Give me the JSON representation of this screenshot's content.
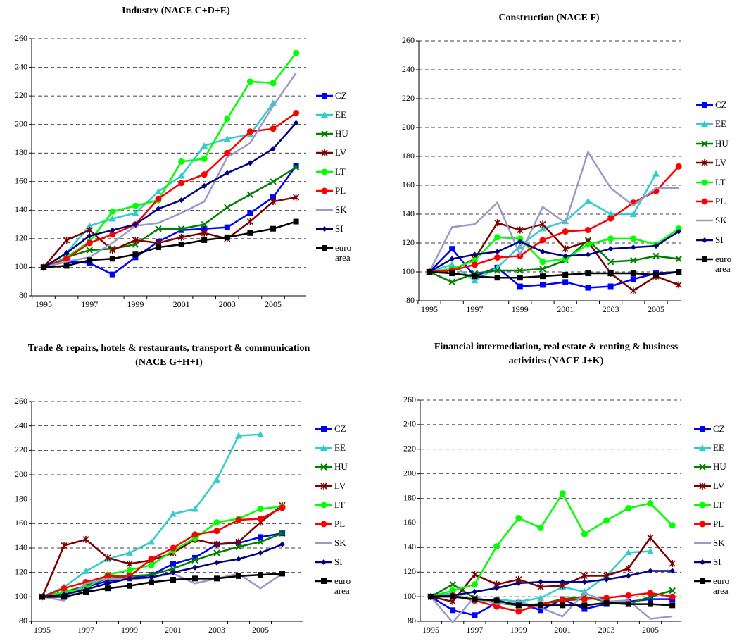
{
  "chart_data": [
    {
      "type": "line",
      "title": "Industry (NACE C+D+E)",
      "categories": [
        "1995",
        null,
        "1997",
        null,
        "1999",
        null,
        "2001",
        null,
        "2003",
        null,
        "2005",
        null
      ],
      "ylim": [
        80,
        260
      ],
      "yticks": [
        80,
        100,
        120,
        140,
        160,
        180,
        200,
        220,
        240,
        260
      ],
      "grid": true,
      "series": [
        {
          "name": "CZ",
          "color": "#0000ff",
          "marker": "square",
          "values": [
            100,
            104,
            103,
            95,
            107,
            118,
            126,
            127,
            128,
            138,
            149,
            171
          ]
        },
        {
          "name": "EE",
          "color": "#33cccc",
          "marker": "triangle",
          "values": [
            100,
            110,
            129,
            134,
            138,
            153,
            164,
            185,
            190,
            193,
            215,
            null
          ]
        },
        {
          "name": "HU",
          "color": "#008000",
          "marker": "x",
          "values": [
            100,
            107,
            112,
            113,
            116,
            127,
            127,
            130,
            142,
            151,
            160,
            170
          ]
        },
        {
          "name": "LV",
          "color": "#800000",
          "marker": "star",
          "values": [
            100,
            119,
            126,
            112,
            119,
            117,
            121,
            124,
            120,
            132,
            146,
            149
          ]
        },
        {
          "name": "LT",
          "color": "#00ff00",
          "marker": "circle",
          "values": [
            100,
            107,
            118,
            139,
            143,
            147,
            174,
            176,
            204,
            230,
            229,
            250
          ]
        },
        {
          "name": "PL",
          "color": "#ff0000",
          "marker": "circle",
          "values": [
            100,
            106,
            117,
            123,
            130,
            148,
            159,
            165,
            180,
            195,
            197,
            208
          ]
        },
        {
          "name": "SK",
          "color": "#9999cc",
          "marker": "none",
          "values": [
            100,
            104,
            107,
            117,
            129,
            131,
            138,
            146,
            177,
            187,
            213,
            236
          ]
        },
        {
          "name": "SI",
          "color": "#000080",
          "marker": "diamond",
          "values": [
            100,
            110,
            122,
            126,
            130,
            141,
            147,
            157,
            166,
            173,
            183,
            201
          ]
        },
        {
          "name": "euro area",
          "color": "#000000",
          "marker": "square",
          "values": [
            100,
            101,
            105,
            106,
            109,
            114,
            116,
            119,
            121,
            124,
            127,
            132
          ]
        }
      ]
    },
    {
      "type": "line",
      "title": "Construction (NACE F)",
      "categories": [
        "1995",
        null,
        "1997",
        null,
        "1999",
        null,
        "2001",
        null,
        "2003",
        null,
        "2005",
        null
      ],
      "ylim": [
        80,
        260
      ],
      "yticks": [
        80,
        100,
        120,
        140,
        160,
        180,
        200,
        220,
        240,
        260
      ],
      "grid": true,
      "series": [
        {
          "name": "CZ",
          "color": "#0000ff",
          "marker": "square",
          "values": [
            100,
            116,
            97,
            103,
            90,
            91,
            93,
            89,
            90,
            95,
            99,
            100
          ]
        },
        {
          "name": "EE",
          "color": "#33cccc",
          "marker": "triangle",
          "values": [
            100,
            105,
            94,
            103,
            118,
            130,
            135,
            149,
            140,
            140,
            168,
            null
          ]
        },
        {
          "name": "HU",
          "color": "#008000",
          "marker": "x",
          "values": [
            100,
            93,
            99,
            101,
            101,
            102,
            108,
            122,
            107,
            108,
            111,
            109
          ]
        },
        {
          "name": "LV",
          "color": "#800000",
          "marker": "star",
          "values": [
            100,
            101,
            109,
            134,
            129,
            133,
            116,
            121,
            99,
            87,
            97,
            91
          ]
        },
        {
          "name": "LT",
          "color": "#00ff00",
          "marker": "circle",
          "values": [
            100,
            102,
            108,
            124,
            123,
            107,
            109,
            119,
            123,
            123,
            119,
            130
          ]
        },
        {
          "name": "PL",
          "color": "#ff0000",
          "marker": "circle",
          "values": [
            100,
            101,
            105,
            110,
            111,
            122,
            128,
            129,
            137,
            148,
            156,
            173
          ]
        },
        {
          "name": "SK",
          "color": "#9999cc",
          "marker": "none",
          "values": [
            100,
            131,
            133,
            148,
            112,
            145,
            134,
            183,
            158,
            146,
            158,
            158
          ]
        },
        {
          "name": "SI",
          "color": "#000080",
          "marker": "diamond",
          "values": [
            100,
            109,
            112,
            114,
            121,
            114,
            111,
            112,
            116,
            117,
            118,
            128
          ]
        },
        {
          "name": "euro area",
          "color": "#000000",
          "marker": "square",
          "values": [
            100,
            99,
            97,
            96,
            96,
            97,
            98,
            99,
            99,
            99,
            98,
            100
          ]
        }
      ]
    },
    {
      "type": "line",
      "title": "Trade & repairs, hotels & restaurants, transport & communication (NACE G+H+I)",
      "categories": [
        "1995",
        null,
        "1997",
        null,
        "1999",
        null,
        "2001",
        null,
        "2003",
        null,
        "2005",
        null
      ],
      "ylim": [
        80,
        260
      ],
      "yticks": [
        80,
        100,
        120,
        140,
        160,
        180,
        200,
        220,
        240,
        260
      ],
      "grid": true,
      "series": [
        {
          "name": "CZ",
          "color": "#0000ff",
          "marker": "square",
          "values": [
            100,
            104,
            108,
            113,
            115,
            118,
            127,
            132,
            143,
            144,
            149,
            152
          ]
        },
        {
          "name": "EE",
          "color": "#33cccc",
          "marker": "triangle",
          "values": [
            100,
            108,
            121,
            131,
            136,
            145,
            168,
            172,
            196,
            232,
            233,
            null
          ]
        },
        {
          "name": "HU",
          "color": "#008000",
          "marker": "x",
          "values": [
            100,
            104,
            109,
            115,
            117,
            118,
            123,
            130,
            136,
            141,
            145,
            152
          ]
        },
        {
          "name": "LV",
          "color": "#800000",
          "marker": "star",
          "values": [
            100,
            142,
            147,
            132,
            127,
            130,
            136,
            147,
            143,
            145,
            161,
            175
          ]
        },
        {
          "name": "LT",
          "color": "#00ff00",
          "marker": "circle",
          "values": [
            100,
            104,
            107,
            118,
            122,
            126,
            138,
            148,
            161,
            164,
            172,
            174
          ]
        },
        {
          "name": "PL",
          "color": "#ff0000",
          "marker": "circle",
          "values": [
            100,
            107,
            112,
            117,
            117,
            131,
            140,
            151,
            154,
            163,
            164,
            173
          ]
        },
        {
          "name": "SK",
          "color": "#9999cc",
          "marker": "none",
          "values": [
            100,
            97,
            111,
            115,
            114,
            116,
            119,
            111,
            115,
            119,
            107,
            119
          ]
        },
        {
          "name": "SI",
          "color": "#000080",
          "marker": "diamond",
          "values": [
            100,
            102,
            106,
            111,
            115,
            116,
            120,
            124,
            128,
            131,
            136,
            143
          ]
        },
        {
          "name": "euro area",
          "color": "#000000",
          "marker": "square",
          "values": [
            100,
            100,
            104,
            107,
            109,
            112,
            114,
            115,
            115,
            117,
            118,
            119
          ]
        }
      ]
    },
    {
      "type": "line",
      "title": "Financial intermediation, real estate & renting & business activities (NACE J+K)",
      "categories": [
        "1995",
        null,
        "1997",
        null,
        "1999",
        null,
        "2001",
        null,
        "2003",
        null,
        "2005",
        null
      ],
      "ylim": [
        80,
        260
      ],
      "yticks": [
        80,
        100,
        120,
        140,
        160,
        180,
        200,
        220,
        240,
        260
      ],
      "grid": true,
      "series": [
        {
          "name": "CZ",
          "color": "#0000ff",
          "marker": "square",
          "values": [
            100,
            89,
            85,
            95,
            95,
            89,
            98,
            90,
            94,
            96,
            98,
            98
          ]
        },
        {
          "name": "EE",
          "color": "#33cccc",
          "marker": "triangle",
          "values": [
            100,
            103,
            96,
            98,
            96,
            99,
            108,
            104,
            117,
            136,
            137,
            null
          ]
        },
        {
          "name": "HU",
          "color": "#008000",
          "marker": "x",
          "values": [
            100,
            110,
            99,
            95,
            93,
            94,
            98,
            100,
            96,
            94,
            100,
            105
          ]
        },
        {
          "name": "LV",
          "color": "#800000",
          "marker": "star",
          "values": [
            100,
            96,
            118,
            110,
            114,
            108,
            109,
            117,
            117,
            123,
            148,
            127
          ]
        },
        {
          "name": "LT",
          "color": "#00ff00",
          "marker": "circle",
          "values": [
            100,
            105,
            110,
            141,
            164,
            156,
            184,
            151,
            162,
            172,
            176,
            158
          ]
        },
        {
          "name": "PL",
          "color": "#ff0000",
          "marker": "circle",
          "values": [
            100,
            101,
            97,
            92,
            88,
            94,
            97,
            98,
            99,
            101,
            103,
            100
          ]
        },
        {
          "name": "SK",
          "color": "#9999cc",
          "marker": "none",
          "values": [
            100,
            79,
            100,
            94,
            96,
            91,
            84,
            103,
            96,
            97,
            82,
            84
          ]
        },
        {
          "name": "SI",
          "color": "#000080",
          "marker": "diamond",
          "values": [
            100,
            101,
            104,
            107,
            111,
            112,
            112,
            112,
            114,
            117,
            121,
            121
          ]
        },
        {
          "name": "euro area",
          "color": "#000000",
          "marker": "square",
          "values": [
            100,
            100,
            98,
            97,
            93,
            93,
            93,
            93,
            95,
            94,
            94,
            93
          ]
        }
      ]
    }
  ]
}
